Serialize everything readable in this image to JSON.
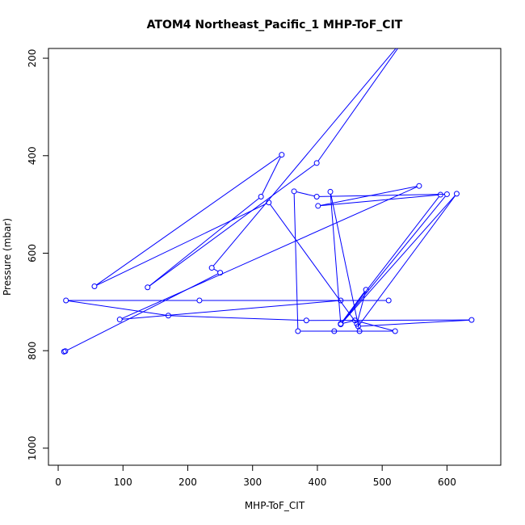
{
  "chart_data": {
    "type": "line",
    "title": "ATOM4 Northeast_Pacific_1 MHP-ToF_CIT",
    "xlabel": "MHP-ToF_CIT",
    "ylabel": "Pressure (mbar)",
    "xlim": [
      -15,
      683
    ],
    "ylim": [
      1035,
      180
    ],
    "y_reversed": true,
    "x_ticks": [
      0,
      100,
      200,
      300,
      400,
      500,
      600
    ],
    "y_ticks": [
      200,
      400,
      600,
      800,
      1000
    ],
    "grid": false,
    "legend": "none",
    "colors": {
      "series": "#0000ff",
      "axis": "#000000"
    },
    "series": [
      {
        "marker": "open-circle",
        "points": [
          {
            "x": 9,
            "y": 802
          },
          {
            "x": 11,
            "y": 801
          },
          {
            "x": 250,
            "y": 640
          },
          {
            "x": 237,
            "y": 630
          },
          {
            "x": 540,
            "y": 150
          },
          {
            "x": 399,
            "y": 415
          },
          {
            "x": 138,
            "y": 670
          },
          {
            "x": 313,
            "y": 484
          },
          {
            "x": 345,
            "y": 398
          },
          {
            "x": 56,
            "y": 668
          },
          {
            "x": 325,
            "y": 496
          },
          {
            "x": 461,
            "y": 745
          },
          {
            "x": 475,
            "y": 675
          },
          {
            "x": 436,
            "y": 745
          },
          {
            "x": 420,
            "y": 474
          },
          {
            "x": 465,
            "y": 760
          },
          {
            "x": 370,
            "y": 760
          },
          {
            "x": 364,
            "y": 473
          },
          {
            "x": 399,
            "y": 484
          },
          {
            "x": 600,
            "y": 479
          },
          {
            "x": 436,
            "y": 746
          },
          {
            "x": 615,
            "y": 478
          },
          {
            "x": 463,
            "y": 750
          },
          {
            "x": 638,
            "y": 737
          },
          {
            "x": 383,
            "y": 738
          },
          {
            "x": 170,
            "y": 728
          },
          {
            "x": 12,
            "y": 697
          },
          {
            "x": 218,
            "y": 697
          },
          {
            "x": 510,
            "y": 697
          },
          {
            "x": 436,
            "y": 697
          },
          {
            "x": 95,
            "y": 736
          },
          {
            "x": 557,
            "y": 462
          },
          {
            "x": 401,
            "y": 503
          },
          {
            "x": 590,
            "y": 480
          },
          {
            "x": 436,
            "y": 745
          },
          {
            "x": 458,
            "y": 738
          },
          {
            "x": 520,
            "y": 760
          },
          {
            "x": 426,
            "y": 760
          }
        ]
      }
    ]
  }
}
